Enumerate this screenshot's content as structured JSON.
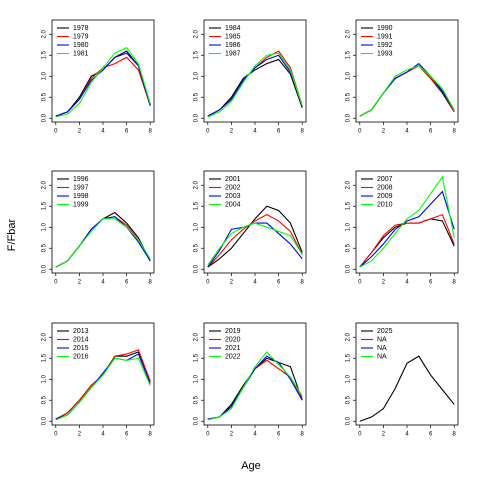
{
  "ylabel": "F/Fbar",
  "xlabel": "Age",
  "chart_data": [
    {
      "type": "line",
      "x": [
        0,
        1,
        2,
        3,
        4,
        5,
        6,
        7,
        8
      ],
      "xlim": [
        -0.32,
        8.32
      ],
      "xticks": [
        0,
        2,
        4,
        6,
        8
      ],
      "ylim": [
        -0.09,
        2.34
      ],
      "yticks": [
        {
          "value": 0,
          "label": "0.0"
        },
        0.5,
        {
          "value": 1,
          "label": "1.0"
        },
        1.5,
        {
          "value": 2,
          "label": "2.0"
        }
      ],
      "legend": "topleft",
      "series": [
        {
          "name": "1978",
          "color": "#000000",
          "values": [
            0.05,
            0.15,
            0.5,
            1.0,
            1.15,
            1.45,
            1.6,
            1.25,
            0.3
          ]
        },
        {
          "name": "1979",
          "color": "#ff0000",
          "values": [
            0.05,
            0.15,
            0.45,
            0.95,
            1.2,
            1.3,
            1.45,
            1.15,
            0.3
          ]
        },
        {
          "name": "1980",
          "color": "#0000ff",
          "values": [
            0.05,
            0.15,
            0.45,
            0.9,
            1.15,
            1.45,
            1.55,
            1.25,
            0.3
          ]
        },
        {
          "name": "1981",
          "color": "#00ff00",
          "values": [
            0.03,
            0.1,
            0.35,
            0.85,
            1.2,
            1.55,
            1.68,
            1.3,
            0.35
          ]
        }
      ]
    },
    {
      "type": "line",
      "x": [
        0,
        1,
        2,
        3,
        4,
        5,
        6,
        7,
        8
      ],
      "xlim": [
        -0.32,
        8.32
      ],
      "xticks": [
        0,
        2,
        4,
        6,
        8
      ],
      "ylim": [
        -0.09,
        2.34
      ],
      "yticks": [
        {
          "value": 0,
          "label": "0.0"
        },
        0.5,
        {
          "value": 1,
          "label": "1.0"
        },
        1.5,
        {
          "value": 2,
          "label": "2.0"
        }
      ],
      "legend": "topleft",
      "series": [
        {
          "name": "1984",
          "color": "#000000",
          "values": [
            0.05,
            0.2,
            0.5,
            0.95,
            1.15,
            1.3,
            1.4,
            1.05,
            0.25
          ]
        },
        {
          "name": "1985",
          "color": "#ff0000",
          "values": [
            0.05,
            0.2,
            0.45,
            0.9,
            1.2,
            1.45,
            1.6,
            1.2,
            0.3
          ]
        },
        {
          "name": "1986",
          "color": "#0000ff",
          "values": [
            0.05,
            0.2,
            0.45,
            0.9,
            1.2,
            1.4,
            1.5,
            1.1,
            0.3
          ]
        },
        {
          "name": "1987",
          "color": "#00ff00",
          "values": [
            0.03,
            0.15,
            0.4,
            0.85,
            1.25,
            1.5,
            1.55,
            1.15,
            0.3
          ]
        }
      ]
    },
    {
      "type": "line",
      "x": [
        0,
        1,
        2,
        3,
        4,
        5,
        6,
        7,
        8
      ],
      "xlim": [
        -0.32,
        8.32
      ],
      "xticks": [
        0,
        2,
        4,
        6,
        8
      ],
      "ylim": [
        -0.09,
        2.34
      ],
      "yticks": [
        {
          "value": 0,
          "label": "0.0"
        },
        0.5,
        {
          "value": 1,
          "label": "1.0"
        },
        1.5,
        {
          "value": 2,
          "label": "2.0"
        }
      ],
      "legend": "topleft",
      "series": [
        {
          "name": "1990",
          "color": "#000000",
          "values": [
            0.05,
            0.2,
            0.6,
            0.95,
            1.1,
            1.25,
            0.95,
            0.6,
            0.15
          ]
        },
        {
          "name": "1991",
          "color": "#ff0000",
          "values": [
            0.05,
            0.2,
            0.6,
            0.95,
            1.1,
            1.25,
            0.95,
            0.65,
            0.15
          ]
        },
        {
          "name": "1992",
          "color": "#0000ff",
          "values": [
            0.05,
            0.2,
            0.6,
            0.95,
            1.1,
            1.3,
            1.0,
            0.65,
            0.2
          ]
        },
        {
          "name": "1993",
          "color": "#00ff00",
          "values": [
            0.05,
            0.2,
            0.6,
            1.0,
            1.15,
            1.25,
            1.0,
            0.7,
            0.2
          ]
        }
      ]
    },
    {
      "type": "line",
      "x": [
        0,
        1,
        2,
        3,
        4,
        5,
        6,
        7,
        8
      ],
      "xlim": [
        -0.32,
        8.32
      ],
      "xticks": [
        0,
        2,
        4,
        6,
        8
      ],
      "ylim": [
        -0.09,
        2.34
      ],
      "yticks": [
        {
          "value": 0,
          "label": "0.0"
        },
        0.5,
        {
          "value": 1,
          "label": "1.0"
        },
        1.5,
        {
          "value": 2,
          "label": "2.0"
        }
      ],
      "legend": "topleft",
      "series": [
        {
          "name": "1996",
          "color": "#000000",
          "values": [
            0.05,
            0.2,
            0.55,
            0.95,
            1.2,
            1.35,
            1.1,
            0.75,
            0.2
          ]
        },
        {
          "name": "1997",
          "color": "#ff0000",
          "values": [
            0.05,
            0.2,
            0.55,
            0.95,
            1.2,
            1.25,
            1.05,
            0.7,
            0.2
          ]
        },
        {
          "name": "1998",
          "color": "#0000ff",
          "values": [
            0.05,
            0.2,
            0.55,
            0.95,
            1.2,
            1.25,
            1.0,
            0.65,
            0.2
          ]
        },
        {
          "name": "1999",
          "color": "#00ff00",
          "values": [
            0.05,
            0.2,
            0.55,
            0.9,
            1.2,
            1.2,
            1.0,
            0.7,
            0.25
          ]
        }
      ]
    },
    {
      "type": "line",
      "x": [
        0,
        1,
        2,
        3,
        4,
        5,
        6,
        7,
        8
      ],
      "xlim": [
        -0.32,
        8.32
      ],
      "xticks": [
        0,
        2,
        4,
        6,
        8
      ],
      "ylim": [
        -0.09,
        2.34
      ],
      "yticks": [
        {
          "value": 0,
          "label": "0.0"
        },
        0.5,
        {
          "value": 1,
          "label": "1.0"
        },
        1.5,
        {
          "value": 2,
          "label": "2.0"
        }
      ],
      "legend": "topleft",
      "series": [
        {
          "name": "2001",
          "color": "#000000",
          "values": [
            0.05,
            0.25,
            0.5,
            0.85,
            1.2,
            1.5,
            1.4,
            1.1,
            0.4
          ]
        },
        {
          "name": "2002",
          "color": "#ff0000",
          "values": [
            0.05,
            0.35,
            0.7,
            0.95,
            1.15,
            1.3,
            1.15,
            0.9,
            0.35
          ]
        },
        {
          "name": "2003",
          "color": "#0000ff",
          "values": [
            0.05,
            0.45,
            0.95,
            1.0,
            1.1,
            1.1,
            0.85,
            0.6,
            0.25
          ]
        },
        {
          "name": "2004",
          "color": "#00ff00",
          "values": [
            0.1,
            0.5,
            0.85,
            1.0,
            1.1,
            1.0,
            0.9,
            0.8,
            0.35
          ]
        }
      ]
    },
    {
      "type": "line",
      "x": [
        0,
        1,
        2,
        3,
        4,
        5,
        6,
        7,
        8
      ],
      "xlim": [
        -0.32,
        8.32
      ],
      "xticks": [
        0,
        2,
        4,
        6,
        8
      ],
      "ylim": [
        -0.09,
        2.34
      ],
      "yticks": [
        {
          "value": 0,
          "label": "0.0"
        },
        0.5,
        {
          "value": 1,
          "label": "1.0"
        },
        1.5,
        {
          "value": 2,
          "label": "2.0"
        }
      ],
      "legend": "topleft",
      "series": [
        {
          "name": "2007",
          "color": "#000000",
          "values": [
            0.05,
            0.4,
            0.75,
            1.0,
            1.1,
            1.1,
            1.2,
            1.15,
            0.55
          ]
        },
        {
          "name": "2008",
          "color": "#ff0000",
          "values": [
            0.05,
            0.4,
            0.8,
            1.05,
            1.1,
            1.1,
            1.2,
            1.3,
            0.6
          ]
        },
        {
          "name": "2009",
          "color": "#0000ff",
          "values": [
            0.05,
            0.3,
            0.6,
            0.95,
            1.15,
            1.25,
            1.55,
            1.85,
            0.95
          ]
        },
        {
          "name": "2010",
          "color": "#00ff00",
          "values": [
            0.05,
            0.2,
            0.5,
            0.85,
            1.2,
            1.4,
            1.8,
            2.2,
            0.75
          ]
        }
      ]
    },
    {
      "type": "line",
      "x": [
        0,
        1,
        2,
        3,
        4,
        5,
        6,
        7,
        8
      ],
      "xlim": [
        -0.32,
        8.32
      ],
      "xticks": [
        0,
        2,
        4,
        6,
        8
      ],
      "ylim": [
        -0.09,
        2.34
      ],
      "yticks": [
        {
          "value": 0,
          "label": "0.0"
        },
        0.5,
        {
          "value": 1,
          "label": "1.0"
        },
        1.5,
        {
          "value": 2,
          "label": "2.0"
        }
      ],
      "legend": "topleft",
      "series": [
        {
          "name": "2013",
          "color": "#000000",
          "values": [
            0.05,
            0.2,
            0.5,
            0.85,
            1.1,
            1.55,
            1.55,
            1.65,
            0.95
          ]
        },
        {
          "name": "2014",
          "color": "#ff0000",
          "values": [
            0.05,
            0.2,
            0.5,
            0.85,
            1.1,
            1.55,
            1.6,
            1.7,
            0.95
          ]
        },
        {
          "name": "2015",
          "color": "#0000ff",
          "values": [
            0.05,
            0.15,
            0.45,
            0.8,
            1.15,
            1.5,
            1.45,
            1.6,
            0.9
          ]
        },
        {
          "name": "2016",
          "color": "#00ff00",
          "values": [
            0.03,
            0.15,
            0.45,
            0.8,
            1.1,
            1.5,
            1.45,
            1.5,
            0.85
          ]
        }
      ]
    },
    {
      "type": "line",
      "x": [
        0,
        1,
        2,
        3,
        4,
        5,
        6,
        7,
        8
      ],
      "xlim": [
        -0.32,
        8.32
      ],
      "xticks": [
        0,
        2,
        4,
        6,
        8
      ],
      "ylim": [
        -0.09,
        2.34
      ],
      "yticks": [
        {
          "value": 0,
          "label": "0.0"
        },
        0.5,
        {
          "value": 1,
          "label": "1.0"
        },
        1.5,
        {
          "value": 2,
          "label": "2.0"
        }
      ],
      "legend": "topleft",
      "series": [
        {
          "name": "2019",
          "color": "#000000",
          "values": [
            0.05,
            0.1,
            0.4,
            0.85,
            1.25,
            1.5,
            1.4,
            1.3,
            0.5
          ]
        },
        {
          "name": "2020",
          "color": "#ff0000",
          "values": [
            0.05,
            0.1,
            0.35,
            0.8,
            1.25,
            1.45,
            1.25,
            1.05,
            0.55
          ]
        },
        {
          "name": "2021",
          "color": "#0000ff",
          "values": [
            0.05,
            0.1,
            0.35,
            0.8,
            1.25,
            1.55,
            1.4,
            1.0,
            0.5
          ]
        },
        {
          "name": "2022",
          "color": "#00ff00",
          "values": [
            0.03,
            0.1,
            0.3,
            0.8,
            1.3,
            1.65,
            1.35,
            1.05,
            0.6
          ]
        }
      ]
    },
    {
      "type": "line",
      "x": [
        0,
        1,
        2,
        3,
        4,
        5,
        6,
        7,
        8
      ],
      "xlim": [
        -0.32,
        8.32
      ],
      "xticks": [
        0,
        2,
        4,
        6,
        8
      ],
      "ylim": [
        -0.09,
        2.34
      ],
      "yticks": [
        {
          "value": 0,
          "label": "0.0"
        },
        0.5,
        {
          "value": 1,
          "label": "1.0"
        },
        1.5,
        {
          "value": 2,
          "label": "2.0"
        }
      ],
      "legend": "topleft",
      "series": [
        {
          "name": "2025",
          "color": "#000000",
          "values": [
            0.0,
            0.1,
            0.3,
            0.78,
            1.38,
            1.55,
            1.1,
            0.75,
            0.4
          ]
        },
        {
          "name": "NA",
          "color": "#ff0000",
          "values": [
            null,
            null,
            null,
            null,
            null,
            null,
            null,
            null,
            null
          ]
        },
        {
          "name": "NA",
          "color": "#0000ff",
          "values": [
            null,
            null,
            null,
            null,
            null,
            null,
            null,
            null,
            null
          ]
        },
        {
          "name": "NA",
          "color": "#00ff00",
          "values": [
            null,
            null,
            null,
            null,
            null,
            null,
            null,
            null,
            null
          ]
        }
      ]
    }
  ]
}
